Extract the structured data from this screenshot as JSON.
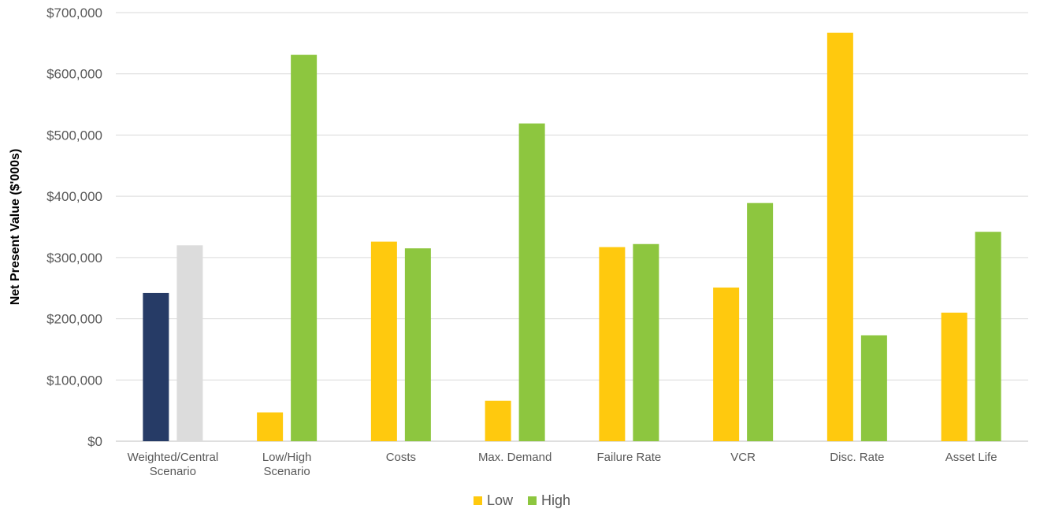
{
  "chart_data": {
    "type": "bar",
    "ylabel": "Net Present Value ($'000s)",
    "ylim": [
      0,
      700000
    ],
    "yticks": [
      0,
      100000,
      200000,
      300000,
      400000,
      500000,
      600000,
      700000
    ],
    "ytick_labels": [
      "$0",
      "$100,000",
      "$200,000",
      "$300,000",
      "$400,000",
      "$500,000",
      "$600,000",
      "$700,000"
    ],
    "grid": true,
    "legend_position": "bottom",
    "categories": [
      [
        "Weighted/Central",
        "Scenario"
      ],
      [
        "Low/High",
        "Scenario"
      ],
      [
        "Costs"
      ],
      [
        "Max. Demand"
      ],
      [
        "Failure Rate"
      ],
      [
        "VCR"
      ],
      [
        "Disc. Rate"
      ],
      [
        "Asset Life"
      ]
    ],
    "series": [
      {
        "name": "Low",
        "values": [
          242000,
          47000,
          326000,
          66000,
          317000,
          251000,
          667000,
          210000
        ]
      },
      {
        "name": "High",
        "values": [
          320000,
          631000,
          315000,
          519000,
          322000,
          389000,
          173000,
          342000
        ]
      }
    ],
    "colors": {
      "low": "#FFC90E",
      "high": "#8DC63F",
      "weighted_low": "#263B66",
      "weighted_high": "#DCDCDC",
      "gridline": "#D9D9D9",
      "axis": "#BFBFBF"
    },
    "legend": [
      {
        "label": "Low",
        "color": "#FFC90E"
      },
      {
        "label": "High",
        "color": "#8DC63F"
      }
    ]
  }
}
